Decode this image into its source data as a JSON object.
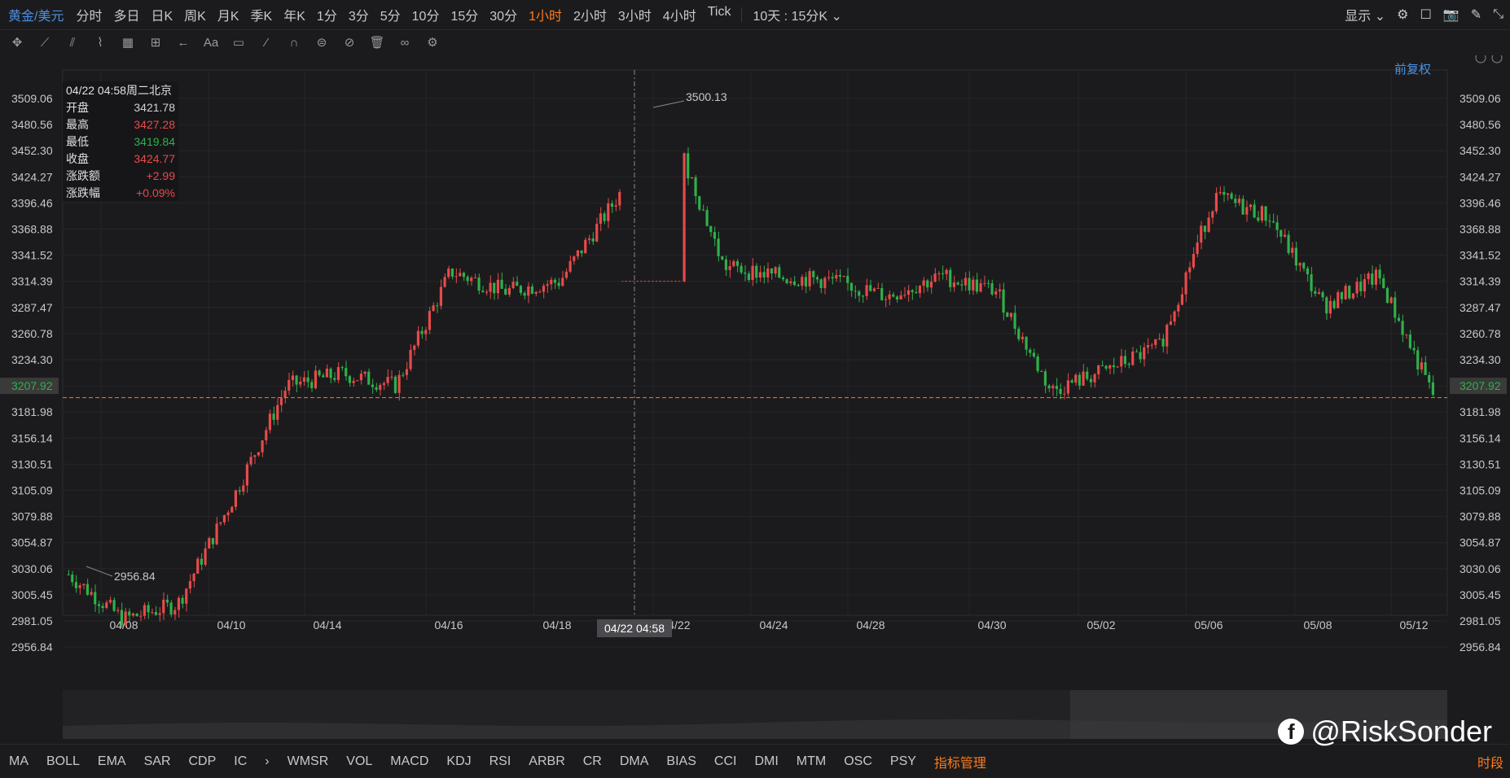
{
  "toolbar": {
    "symbol": "黄金/美元",
    "periods": [
      "分时",
      "多日",
      "日K",
      "周K",
      "月K",
      "季K",
      "年K",
      "1分",
      "3分",
      "5分",
      "10分",
      "15分",
      "30分",
      "1小时",
      "2小时",
      "3小时",
      "4小时",
      "Tick"
    ],
    "active_period": "1小时",
    "range": "10天 : 15分K",
    "display": "显示"
  },
  "fuquan": "前复权",
  "info_panel": {
    "header": "04/22 04:58周二北京",
    "rows": [
      {
        "label": "开盘",
        "value": "3421.78",
        "color": "#d0d0d0"
      },
      {
        "label": "最高",
        "value": "3427.28",
        "color": "#e84a4a"
      },
      {
        "label": "最低",
        "value": "3419.84",
        "color": "#2fb14a"
      },
      {
        "label": "收盘",
        "value": "3424.77",
        "color": "#e84a4a"
      },
      {
        "label": "涨跌额",
        "value": "+2.99",
        "color": "#e84a4a"
      },
      {
        "label": "涨跌幅",
        "value": "+0.09%",
        "color": "#e84a4a"
      }
    ]
  },
  "chart_data": {
    "type": "line",
    "title": "黄金/美元",
    "y_ticks": [
      "3509.06",
      "3480.56",
      "3452.30",
      "3424.27",
      "3396.46",
      "3368.88",
      "3341.52",
      "3314.39",
      "3287.47",
      "3260.78",
      "3234.30",
      "3207.92",
      "3181.98",
      "3156.14",
      "3130.51",
      "3105.09",
      "3079.88",
      "3054.87",
      "3030.06",
      "3005.45",
      "2981.05",
      "2956.84"
    ],
    "x_ticks": [
      "04/08",
      "04/10",
      "04/14",
      "04/16",
      "04/18",
      "04/22",
      "04/24",
      "04/28",
      "04/30",
      "05/02",
      "05/06",
      "05/08",
      "05/12"
    ],
    "current_price": "3207.92",
    "high_label": "3500.13",
    "low_label": "2956.84",
    "crosshair_label": "04/22 04:58",
    "series": [
      {
        "x": [
          "04/07",
          "04/08",
          "04/09",
          "04/10",
          "04/11",
          "04/14",
          "04/15",
          "04/16",
          "04/17",
          "04/18",
          "04/21",
          "04/22",
          "04/23",
          "04/24",
          "04/25",
          "04/28",
          "04/29",
          "04/30",
          "05/01",
          "05/02",
          "05/05",
          "05/06",
          "05/07",
          "05/08",
          "05/09",
          "05/12"
        ],
        "values": [
          3030,
          2985,
          3000,
          3105,
          3220,
          3232,
          3220,
          3335,
          3315,
          3325,
          3405,
          3490,
          3340,
          3330,
          3325,
          3310,
          3330,
          3315,
          3215,
          3235,
          3260,
          3410,
          3390,
          3300,
          3330,
          3210
        ]
      }
    ]
  },
  "indicators": [
    "MA",
    "BOLL",
    "EMA",
    "SAR",
    "CDP",
    "IC",
    "WMSR",
    "VOL",
    "MACD",
    "KDJ",
    "RSI",
    "ARBR",
    "CR",
    "DMA",
    "BIAS",
    "CCI",
    "DMI",
    "MTM",
    "OSC",
    "PSY"
  ],
  "indicator_manager": "指标管理",
  "time_segment": "时段",
  "watermark": "@RiskSonder",
  "colors": {
    "up": "#e84a4a",
    "down": "#2fb14a",
    "accent": "#ff7a1a",
    "link": "#4a90e2"
  }
}
